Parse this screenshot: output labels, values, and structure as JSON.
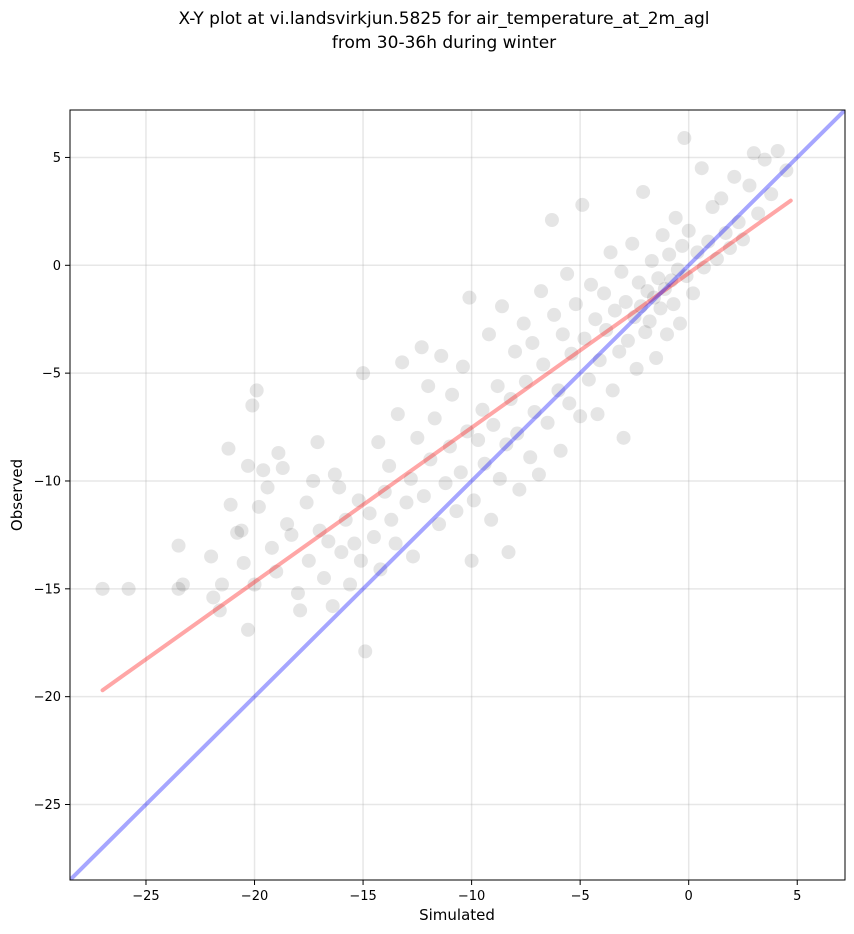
{
  "chart_data": {
    "type": "scatter",
    "title": "X-Y plot at vi.landsvirkjun.5825 for air_temperature_at_2m_agl",
    "subtitle": "from 30-36h during winter",
    "xlabel": "Simulated",
    "ylabel": "Observed",
    "xlim": [
      -28.5,
      7.2
    ],
    "ylim": [
      -28.5,
      7.2
    ],
    "x_ticks": [
      -25,
      -20,
      -15,
      -10,
      -5,
      0,
      5
    ],
    "y_ticks": [
      -25,
      -20,
      -15,
      -10,
      -5,
      0,
      5
    ],
    "x_tick_labels": [
      "−25",
      "−20",
      "−15",
      "−10",
      "−5",
      "0",
      "5"
    ],
    "y_tick_labels": [
      "−25",
      "−20",
      "−15",
      "−10",
      "−5",
      "0",
      "5"
    ],
    "grid": true,
    "point_color": "#000000",
    "point_opacity": 0.1,
    "points": [
      [
        -27.0,
        -15.0
      ],
      [
        -25.8,
        -15.0
      ],
      [
        -23.5,
        -13.0
      ],
      [
        -23.3,
        -14.8
      ],
      [
        -23.5,
        -15.0
      ],
      [
        -22.0,
        -13.5
      ],
      [
        -21.9,
        -15.4
      ],
      [
        -21.5,
        -14.8
      ],
      [
        -21.6,
        -16.0
      ],
      [
        -21.2,
        -8.5
      ],
      [
        -21.1,
        -11.1
      ],
      [
        -20.8,
        -12.4
      ],
      [
        -20.6,
        -12.3
      ],
      [
        -20.3,
        -9.3
      ],
      [
        -20.5,
        -13.8
      ],
      [
        -20.3,
        -16.9
      ],
      [
        -20.0,
        -14.8
      ],
      [
        -19.9,
        -5.8
      ],
      [
        -20.1,
        -6.5
      ],
      [
        -19.8,
        -11.2
      ],
      [
        -19.6,
        -9.5
      ],
      [
        -19.4,
        -10.3
      ],
      [
        -19.2,
        -13.1
      ],
      [
        -19.0,
        -14.2
      ],
      [
        -18.9,
        -8.7
      ],
      [
        -18.7,
        -9.4
      ],
      [
        -18.5,
        -12.0
      ],
      [
        -18.3,
        -12.5
      ],
      [
        -18.0,
        -15.2
      ],
      [
        -17.9,
        -16.0
      ],
      [
        -17.6,
        -11.0
      ],
      [
        -17.5,
        -13.7
      ],
      [
        -17.3,
        -10.0
      ],
      [
        -17.1,
        -8.2
      ],
      [
        -17.0,
        -12.3
      ],
      [
        -16.8,
        -14.5
      ],
      [
        -16.6,
        -12.8
      ],
      [
        -16.4,
        -15.8
      ],
      [
        -16.3,
        -9.7
      ],
      [
        -16.1,
        -10.3
      ],
      [
        -16.0,
        -13.3
      ],
      [
        -15.8,
        -11.8
      ],
      [
        -15.6,
        -14.8
      ],
      [
        -15.4,
        -12.9
      ],
      [
        -15.2,
        -10.9
      ],
      [
        -15.1,
        -13.7
      ],
      [
        -15.0,
        -5.0
      ],
      [
        -14.9,
        -17.9
      ],
      [
        -14.7,
        -11.5
      ],
      [
        -14.5,
        -12.6
      ],
      [
        -14.3,
        -8.2
      ],
      [
        -14.2,
        -14.1
      ],
      [
        -14.0,
        -10.5
      ],
      [
        -13.8,
        -9.3
      ],
      [
        -13.7,
        -11.8
      ],
      [
        -13.5,
        -12.9
      ],
      [
        -13.4,
        -6.9
      ],
      [
        -13.2,
        -4.5
      ],
      [
        -13.0,
        -11.0
      ],
      [
        -12.8,
        -9.9
      ],
      [
        -12.7,
        -13.5
      ],
      [
        -12.5,
        -8.0
      ],
      [
        -12.3,
        -3.8
      ],
      [
        -12.2,
        -10.7
      ],
      [
        -12.0,
        -5.6
      ],
      [
        -11.9,
        -9.0
      ],
      [
        -11.7,
        -7.1
      ],
      [
        -11.5,
        -12.0
      ],
      [
        -11.4,
        -4.2
      ],
      [
        -11.2,
        -10.1
      ],
      [
        -11.0,
        -8.4
      ],
      [
        -10.9,
        -6.0
      ],
      [
        -10.7,
        -11.4
      ],
      [
        -10.5,
        -9.6
      ],
      [
        -10.4,
        -4.7
      ],
      [
        -10.2,
        -7.7
      ],
      [
        -10.1,
        -1.5
      ],
      [
        -10.0,
        -13.7
      ],
      [
        -9.9,
        -10.9
      ],
      [
        -9.7,
        -8.1
      ],
      [
        -9.5,
        -6.7
      ],
      [
        -9.4,
        -9.2
      ],
      [
        -9.2,
        -3.2
      ],
      [
        -9.1,
        -11.8
      ],
      [
        -9.0,
        -7.4
      ],
      [
        -8.8,
        -5.6
      ],
      [
        -8.7,
        -9.9
      ],
      [
        -8.6,
        -1.9
      ],
      [
        -8.4,
        -8.3
      ],
      [
        -8.3,
        -13.3
      ],
      [
        -8.2,
        -6.2
      ],
      [
        -8.0,
        -4.0
      ],
      [
        -7.9,
        -7.8
      ],
      [
        -7.8,
        -10.4
      ],
      [
        -7.6,
        -2.7
      ],
      [
        -7.5,
        -5.4
      ],
      [
        -7.3,
        -8.9
      ],
      [
        -7.2,
        -3.6
      ],
      [
        -7.1,
        -6.8
      ],
      [
        -6.9,
        -9.7
      ],
      [
        -6.8,
        -1.2
      ],
      [
        -6.7,
        -4.6
      ],
      [
        -6.5,
        -7.3
      ],
      [
        -6.3,
        2.1
      ],
      [
        -6.2,
        -2.3
      ],
      [
        -6.0,
        -5.8
      ],
      [
        -5.9,
        -8.6
      ],
      [
        -5.8,
        -3.2
      ],
      [
        -5.6,
        -0.4
      ],
      [
        -5.5,
        -6.4
      ],
      [
        -5.4,
        -4.1
      ],
      [
        -5.2,
        -1.8
      ],
      [
        -5.0,
        -7.0
      ],
      [
        -4.9,
        2.8
      ],
      [
        -4.8,
        -3.4
      ],
      [
        -4.6,
        -5.3
      ],
      [
        -4.5,
        -0.9
      ],
      [
        -4.3,
        -2.5
      ],
      [
        -4.2,
        -6.9
      ],
      [
        -4.1,
        -4.4
      ],
      [
        -3.9,
        -1.3
      ],
      [
        -3.8,
        -3.0
      ],
      [
        -3.6,
        0.6
      ],
      [
        -3.5,
        -5.8
      ],
      [
        -3.4,
        -2.1
      ],
      [
        -3.2,
        -4.0
      ],
      [
        -3.1,
        -0.3
      ],
      [
        -3.0,
        -8.0
      ],
      [
        -2.9,
        -1.7
      ],
      [
        -2.8,
        -3.5
      ],
      [
        -2.6,
        1.0
      ],
      [
        -2.5,
        -2.4
      ],
      [
        -2.4,
        -4.8
      ],
      [
        -2.3,
        -0.8
      ],
      [
        -2.2,
        -1.9
      ],
      [
        -2.1,
        3.4
      ],
      [
        -2.0,
        -3.1
      ],
      [
        -1.9,
        -1.2
      ],
      [
        -1.8,
        -2.6
      ],
      [
        -1.7,
        0.2
      ],
      [
        -1.6,
        -1.5
      ],
      [
        -1.5,
        -4.3
      ],
      [
        -1.4,
        -0.6
      ],
      [
        -1.3,
        -2.0
      ],
      [
        -1.2,
        1.4
      ],
      [
        -1.1,
        -1.1
      ],
      [
        -1.0,
        -3.2
      ],
      [
        -0.9,
        0.5
      ],
      [
        -0.8,
        -0.7
      ],
      [
        -0.7,
        -1.8
      ],
      [
        -0.6,
        2.2
      ],
      [
        -0.5,
        -0.2
      ],
      [
        -0.4,
        -2.7
      ],
      [
        -0.3,
        0.9
      ],
      [
        -0.2,
        5.9
      ],
      [
        -0.1,
        -0.5
      ],
      [
        0.0,
        1.6
      ],
      [
        0.2,
        -1.3
      ],
      [
        0.4,
        0.6
      ],
      [
        0.6,
        4.5
      ],
      [
        0.7,
        -0.1
      ],
      [
        0.9,
        1.1
      ],
      [
        1.1,
        2.7
      ],
      [
        1.3,
        0.3
      ],
      [
        1.5,
        3.1
      ],
      [
        1.7,
        1.5
      ],
      [
        1.9,
        0.8
      ],
      [
        2.1,
        4.1
      ],
      [
        2.3,
        2.0
      ],
      [
        2.5,
        1.2
      ],
      [
        2.8,
        3.7
      ],
      [
        3.0,
        5.2
      ],
      [
        3.2,
        2.4
      ],
      [
        3.5,
        4.9
      ],
      [
        3.8,
        3.3
      ],
      [
        4.1,
        5.3
      ],
      [
        4.5,
        4.4
      ]
    ],
    "series": [
      {
        "type": "line",
        "color": "#ff0000",
        "opacity": 0.35,
        "points": [
          [
            -27.0,
            -19.7
          ],
          [
            4.7,
            3.0
          ]
        ]
      },
      {
        "type": "line",
        "color": "#0000ff",
        "opacity": 0.35,
        "points": [
          [
            -28.5,
            -28.5
          ],
          [
            7.2,
            7.2
          ]
        ]
      }
    ]
  }
}
